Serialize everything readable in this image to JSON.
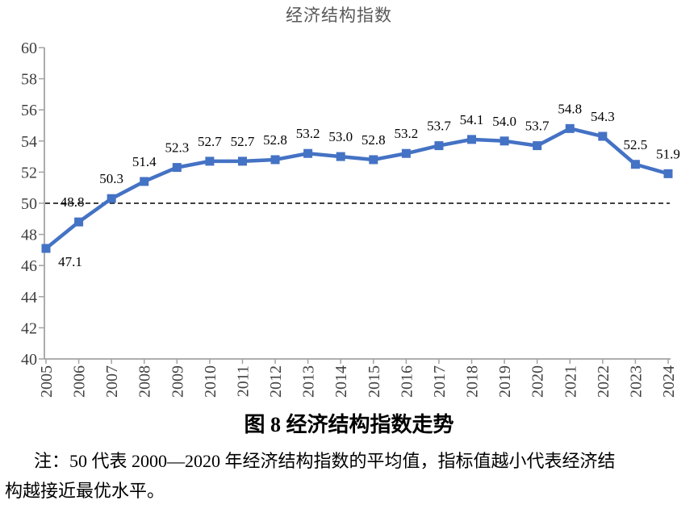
{
  "page": {
    "chart_title": "经济结构指数",
    "figure_caption": "图 8  经济结构指数走势",
    "note_line_1": "注：50 代表 2000—2020 年经济结构指数的平均值，指标值越小代表经济结",
    "note_line_2": "构越接近最优水平。"
  },
  "colors": {
    "series": "#4472C4",
    "axis_line": "#a3a3a3",
    "axis_label": "#404040",
    "title": "#595959",
    "data_label": "#000000",
    "reference_line": "#000000"
  },
  "chart_data": {
    "type": "line",
    "title": "经济结构指数",
    "categories": [
      "2005",
      "2006",
      "2007",
      "2008",
      "2009",
      "2010",
      "2011",
      "2012",
      "2013",
      "2014",
      "2015",
      "2016",
      "2017",
      "2018",
      "2019",
      "2020",
      "2021",
      "2022",
      "2023",
      "2024"
    ],
    "values": [
      47.1,
      48.8,
      50.3,
      51.4,
      52.3,
      52.7,
      52.7,
      52.8,
      53.2,
      53.0,
      52.8,
      53.2,
      53.7,
      54.1,
      54.0,
      53.7,
      54.8,
      54.3,
      52.5,
      51.9
    ],
    "data_labels": [
      "47.1",
      "48.8",
      "50.3",
      "51.4",
      "52.3",
      "52.7",
      "52.7",
      "52.8",
      "53.2",
      "53.0",
      "52.8",
      "53.2",
      "53.7",
      "54.1",
      "54.0",
      "53.7",
      "54.8",
      "54.3",
      "52.5",
      "51.9"
    ],
    "ylim": [
      40,
      60
    ],
    "ytick_step": 2,
    "ytick_labels": [
      "40",
      "42",
      "44",
      "46",
      "48",
      "50",
      "52",
      "54",
      "56",
      "58",
      "60"
    ],
    "reference_line_value": 50,
    "reference_line_style": "dashed",
    "grid": false,
    "legend": false,
    "marker": "square",
    "label_position": "above",
    "label_overrides": {
      "0": {
        "dx": 30,
        "dy": 41
      },
      "1": {
        "dx": -8,
        "dy": 0
      }
    }
  }
}
